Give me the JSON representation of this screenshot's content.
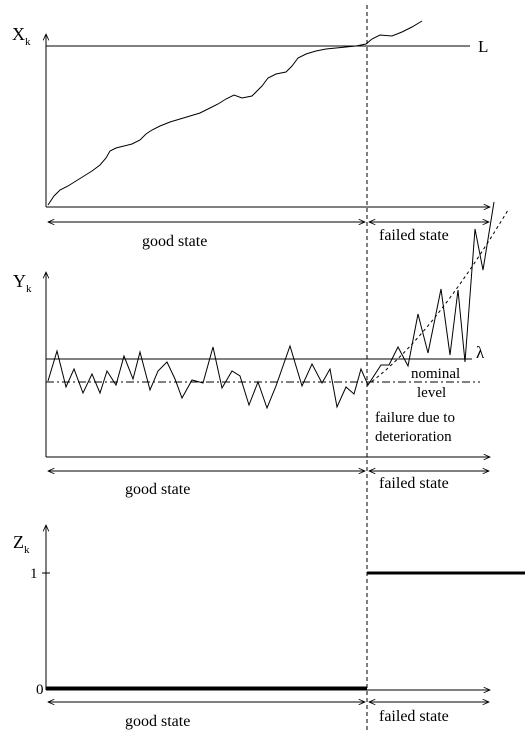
{
  "top_panel": {
    "y_label": "X",
    "y_subscript": "k",
    "threshold_label": "L",
    "span_good": "good state",
    "span_failed": "failed state"
  },
  "middle_panel": {
    "y_label": "Y",
    "y_subscript": "k",
    "threshold_label": "λ",
    "nominal_line1": "nominal",
    "nominal_line2": "level",
    "failure_line1": "failure due to",
    "failure_line2": "deterioration",
    "span_good": "good state",
    "span_failed": "failed state"
  },
  "bottom_panel": {
    "y_label": "Z",
    "y_subscript": "k",
    "tick_one": "1",
    "tick_zero": "0",
    "span_good": "good state",
    "span_failed": "failed state"
  }
}
